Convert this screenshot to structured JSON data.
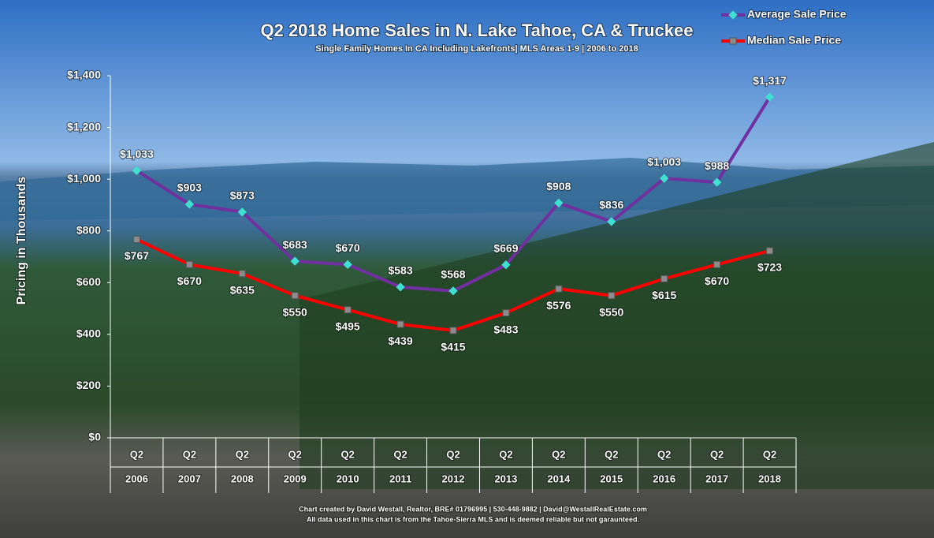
{
  "chart_data": {
    "type": "line",
    "title": "Q2 2018 Home Sales in N. Lake Tahoe, CA & Truckee",
    "subtitle": "Single Family Homes In CA Including Lakefronts| MLS Areas 1-9 | 2006 to 2018",
    "y_label": "Pricing in Thousands",
    "categories": [
      [
        "Q2",
        "2006"
      ],
      [
        "Q2",
        "2007"
      ],
      [
        "Q2",
        "2008"
      ],
      [
        "Q2",
        "2009"
      ],
      [
        "Q2",
        "2010"
      ],
      [
        "Q2",
        "2011"
      ],
      [
        "Q2",
        "2012"
      ],
      [
        "Q2",
        "2013"
      ],
      [
        "Q2",
        "2014"
      ],
      [
        "Q2",
        "2015"
      ],
      [
        "Q2",
        "2016"
      ],
      [
        "Q2",
        "2017"
      ],
      [
        "Q2",
        "2018"
      ]
    ],
    "series": [
      {
        "name": "Average Sale Price",
        "color": "#7030a0",
        "marker_color": "#40e0d0",
        "values": [
          1033,
          903,
          873,
          683,
          670,
          583,
          568,
          669,
          908,
          836,
          1003,
          988,
          1317
        ],
        "value_labels": [
          "$1,033",
          "$903",
          "$873",
          "$683",
          "$670",
          "$583",
          "$568",
          "$669",
          "$908",
          "$836",
          "$1,003",
          "$988",
          "$1,317"
        ]
      },
      {
        "name": "Median Sale Price",
        "color": "#ff0000",
        "marker_color": "#8c8c8c",
        "values": [
          767,
          670,
          635,
          550,
          495,
          439,
          415,
          483,
          576,
          550,
          615,
          670,
          723
        ],
        "value_labels": [
          "$767",
          "$670",
          "$635",
          "$550",
          "$495",
          "$439",
          "$415",
          "$483",
          "$576",
          "$550",
          "$615",
          "$670",
          "$723"
        ]
      }
    ],
    "ylim": [
      0,
      1400
    ],
    "yticks": [
      {
        "value": 0,
        "label": "$0"
      },
      {
        "value": 200,
        "label": "$200"
      },
      {
        "value": 400,
        "label": "$400"
      },
      {
        "value": 600,
        "label": "$600"
      },
      {
        "value": 800,
        "label": "$800"
      },
      {
        "value": 1000,
        "label": "$1,000"
      },
      {
        "value": 1200,
        "label": "$1,200"
      },
      {
        "value": 1400,
        "label": "$1,400"
      }
    ],
    "legend": "top-right",
    "footer": [
      "Chart created by David Westall, Realtor, BRE# 01796995 | 530-448-9882 | David@WestallRealEstate.com",
      "All data used in this chart is from the Tahoe-Sierra MLS and is deemed reliable but  not garaunteed."
    ]
  }
}
